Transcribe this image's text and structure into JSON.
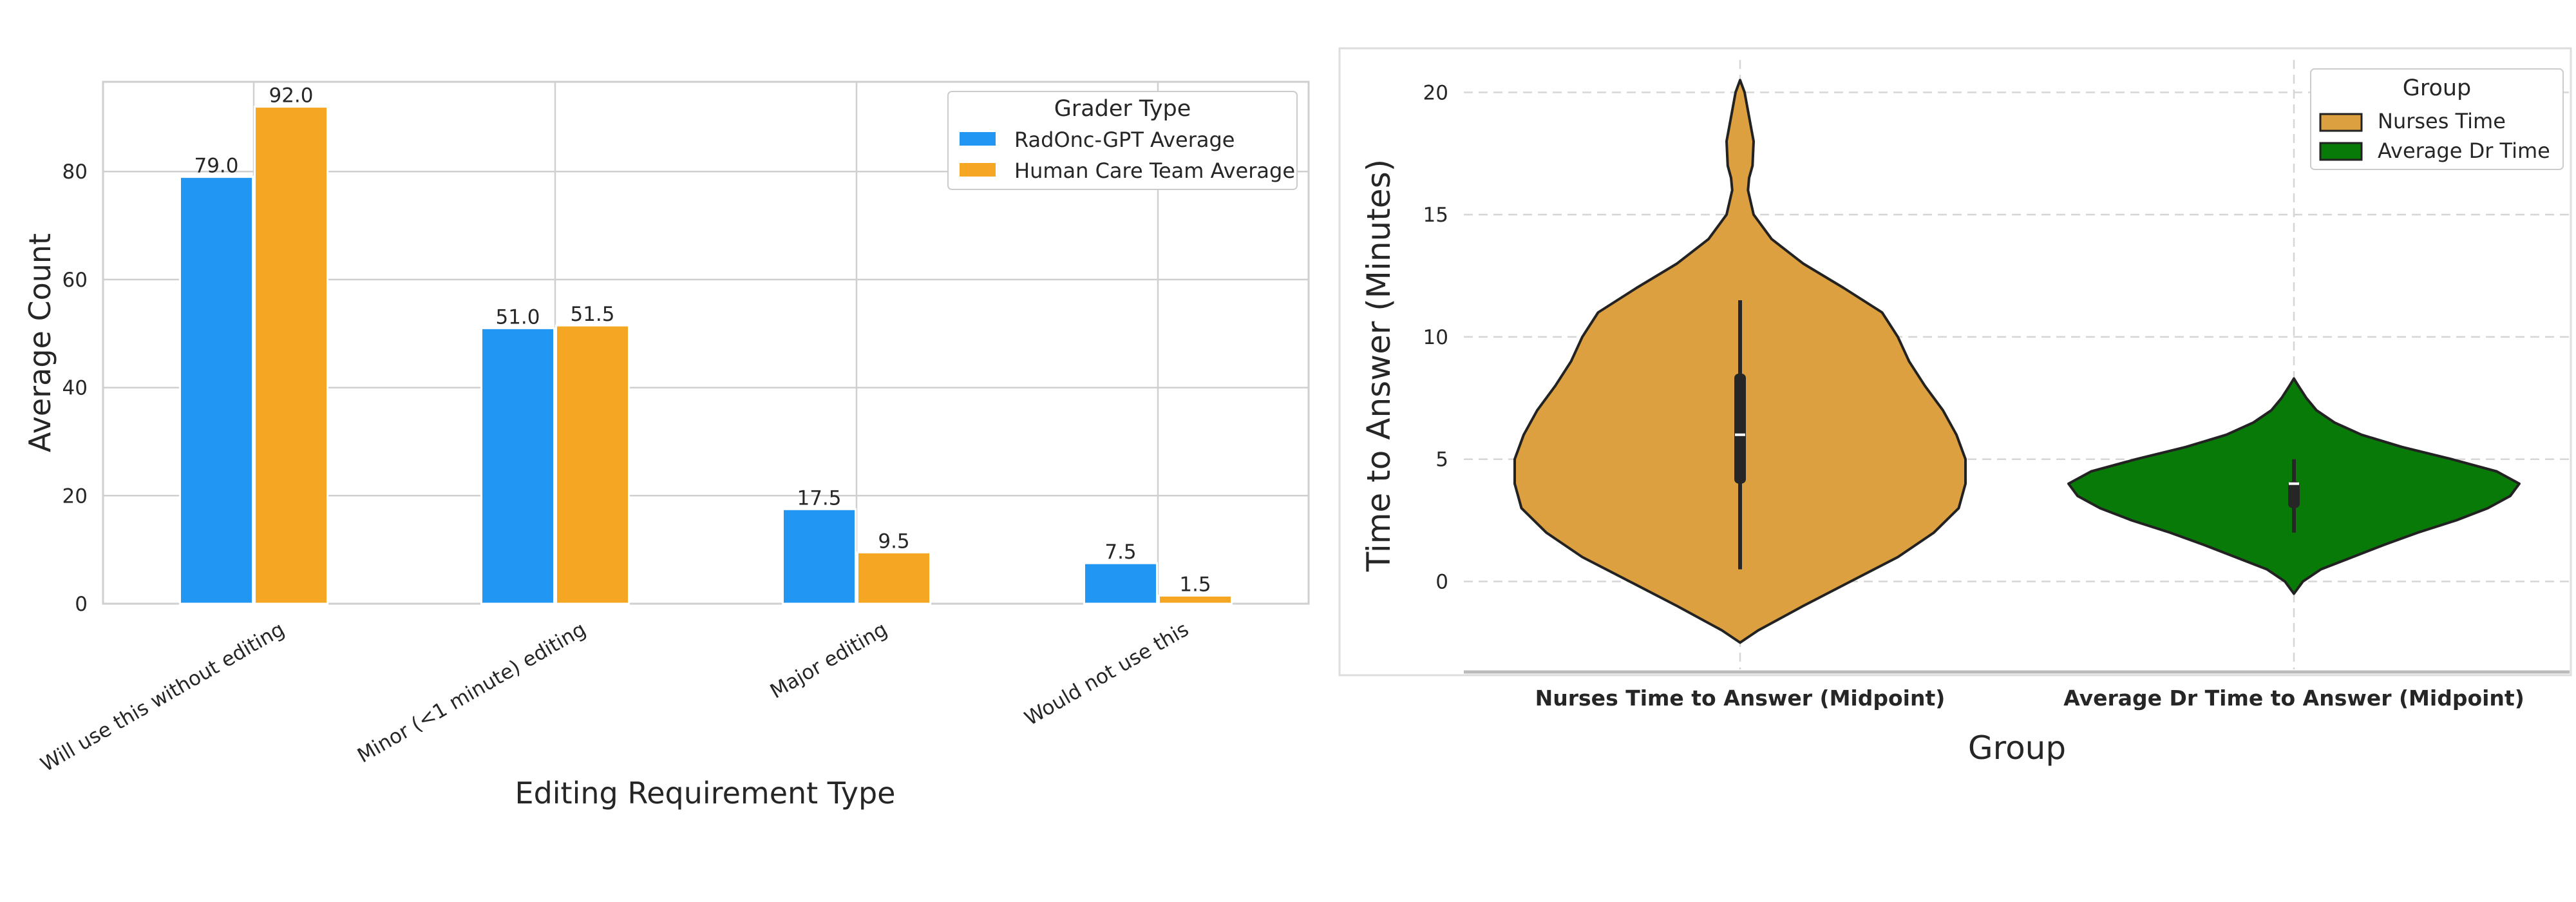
{
  "chart_data": [
    {
      "type": "bar",
      "title": "",
      "xlabel": "Editing Requirement Type",
      "ylabel": "Average Count",
      "categories": [
        "Will use this without editing",
        "Minor (<1 minute) editing",
        "Major editing",
        "Would not use this"
      ],
      "series": [
        {
          "name": "RadOnc-GPT Average",
          "values": [
            79.0,
            51.0,
            17.5,
            7.5
          ],
          "value_labels": [
            "79.0",
            "51.0",
            "17.5",
            "7.5"
          ],
          "color": "#2196f3"
        },
        {
          "name": "Human Care Team Average",
          "values": [
            92.0,
            51.5,
            9.5,
            1.5
          ],
          "value_labels": [
            "92.0",
            "51.5",
            "9.5",
            "1.5"
          ],
          "color": "#f5a623"
        }
      ],
      "ylim": [
        0,
        96.6
      ],
      "yticks": [
        0,
        20,
        40,
        60,
        80
      ],
      "legend": {
        "title": "Grader Type",
        "position": "top-right"
      },
      "grid": true
    },
    {
      "type": "violin",
      "title": "",
      "xlabel": "Group",
      "ylabel": "Time to Answer (Minutes)",
      "categories": [
        "Nurses Time to Answer (Midpoint)",
        "Average Dr Time to Answer (Midpoint)"
      ],
      "series": [
        {
          "name": "Nurses Time",
          "color": "#dca040",
          "min": -2.5,
          "max": 20.5,
          "q1": 4.0,
          "median": 6.0,
          "q3": 8.5,
          "whisker_low": 0.5,
          "whisker_high": 11.5,
          "density": [
            [
              -2.5,
              0.0
            ],
            [
              -2.0,
              0.08
            ],
            [
              -1.0,
              0.28
            ],
            [
              0.0,
              0.49
            ],
            [
              1.0,
              0.7
            ],
            [
              2.0,
              0.86
            ],
            [
              3.0,
              0.97
            ],
            [
              4.0,
              1.0
            ],
            [
              5.0,
              1.0
            ],
            [
              6.0,
              0.96
            ],
            [
              7.0,
              0.9
            ],
            [
              8.0,
              0.82
            ],
            [
              9.0,
              0.75
            ],
            [
              10.0,
              0.7
            ],
            [
              11.0,
              0.63
            ],
            [
              12.0,
              0.46
            ],
            [
              13.0,
              0.28
            ],
            [
              14.0,
              0.14
            ],
            [
              15.0,
              0.06
            ],
            [
              16.0,
              0.035
            ],
            [
              16.5,
              0.04
            ],
            [
              17.0,
              0.055
            ],
            [
              18.0,
              0.06
            ],
            [
              19.0,
              0.04
            ],
            [
              20.0,
              0.02
            ],
            [
              20.5,
              0.0
            ]
          ]
        },
        {
          "name": "Average Dr Time",
          "color": "#087a08",
          "min": -0.5,
          "max": 8.3,
          "q1": 3.0,
          "median": 4.0,
          "q3": 4.1,
          "whisker_low": 2.0,
          "whisker_high": 5.0,
          "density": [
            [
              -0.5,
              0.0
            ],
            [
              0.0,
              0.04
            ],
            [
              0.5,
              0.12
            ],
            [
              1.0,
              0.26
            ],
            [
              1.5,
              0.4
            ],
            [
              2.0,
              0.55
            ],
            [
              2.5,
              0.72
            ],
            [
              3.0,
              0.86
            ],
            [
              3.5,
              0.96
            ],
            [
              4.0,
              1.0
            ],
            [
              4.5,
              0.9
            ],
            [
              5.0,
              0.7
            ],
            [
              5.5,
              0.48
            ],
            [
              6.0,
              0.3
            ],
            [
              6.5,
              0.18
            ],
            [
              7.0,
              0.1
            ],
            [
              7.5,
              0.055
            ],
            [
              8.0,
              0.02
            ],
            [
              8.3,
              0.0
            ]
          ]
        }
      ],
      "ylim": [
        -3.7,
        21.8
      ],
      "yticks": [
        0,
        5,
        10,
        15,
        20
      ],
      "legend": {
        "title": "Group",
        "position": "top-right"
      },
      "grid": true
    }
  ]
}
